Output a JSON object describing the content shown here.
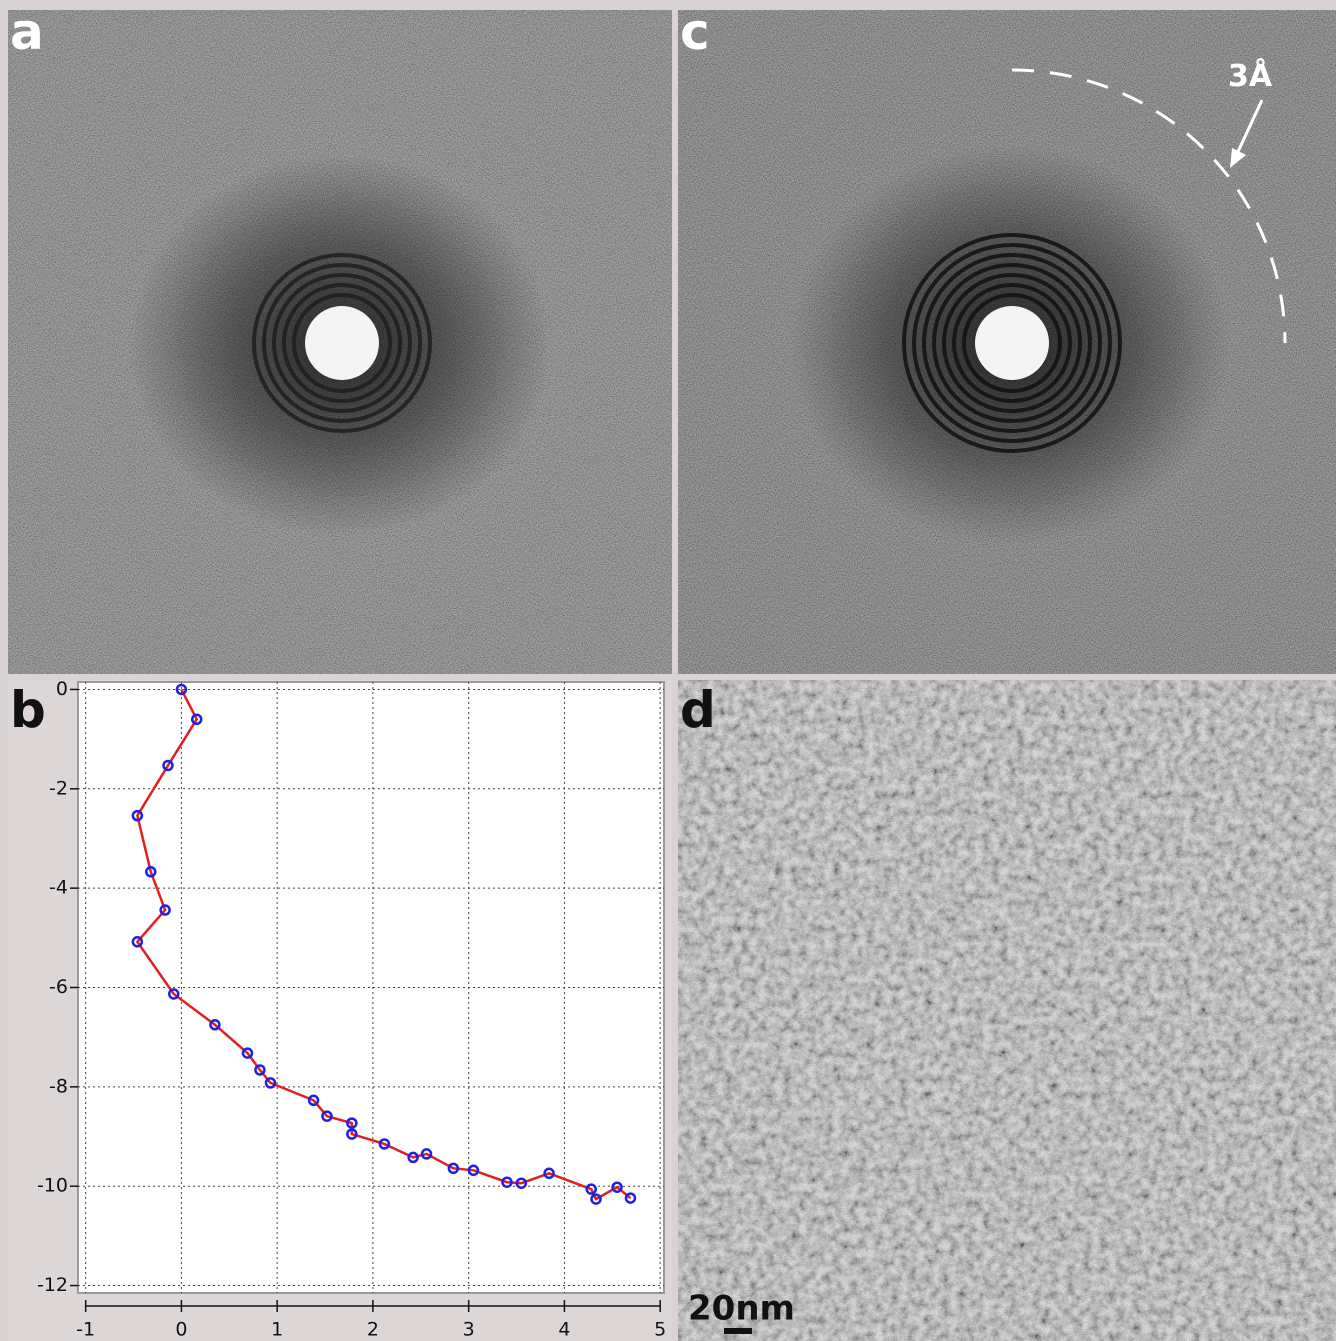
{
  "panels": {
    "a": "a",
    "b": "b",
    "c": "c",
    "d": "d"
  },
  "annotations": {
    "resolution": "3Å",
    "scale_bar": "20nm"
  },
  "chart_data": {
    "type": "line",
    "x": [
      0,
      0.16,
      -0.14,
      -0.46,
      -0.32,
      -0.17,
      -0.46,
      -0.08,
      0.35,
      0.69,
      0.82,
      0.93,
      1.38,
      1.52,
      1.78,
      1.78,
      2.12,
      2.42,
      2.56,
      2.84,
      3.05,
      3.4,
      3.55,
      3.84,
      4.28,
      4.33,
      4.55,
      4.69
    ],
    "series": [
      {
        "color": "#e02020",
        "marker_color": "#2020e0",
        "values": [
          0,
          -0.6,
          -1.53,
          -2.54,
          -3.67,
          -4.44,
          -5.08,
          -6.13,
          -6.75,
          -7.32,
          -7.66,
          -7.92,
          -8.27,
          -8.59,
          -8.73,
          -8.95,
          -9.15,
          -9.42,
          -9.35,
          -9.64,
          -9.68,
          -9.92,
          -9.94,
          -9.74,
          -10.06,
          -10.26,
          -10.02,
          -10.24
        ]
      }
    ],
    "xlim": [
      -1.08,
      5.04
    ],
    "ylim": [
      -12.15,
      0.15
    ],
    "xticks": [
      -1,
      0,
      1,
      2,
      3,
      4,
      5
    ],
    "yticks": [
      0,
      -2,
      -4,
      -6,
      -8,
      -10,
      -12
    ],
    "grid": true
  }
}
